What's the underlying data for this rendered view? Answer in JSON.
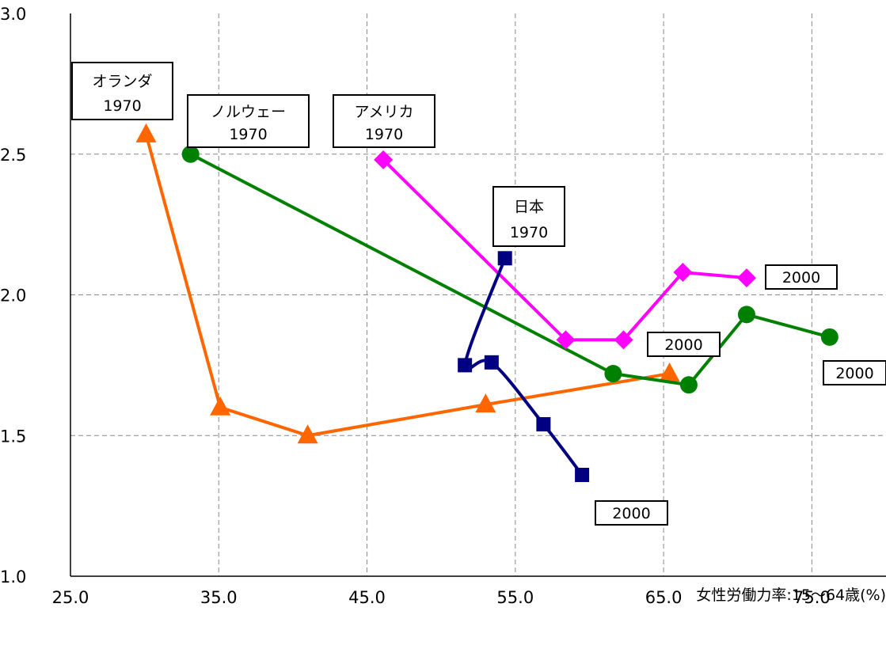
{
  "chart_data": {
    "type": "line",
    "xlabel": "女性労働力率:15〜64歳(%)",
    "ylabel": "",
    "xlim": [
      25,
      80
    ],
    "ylim": [
      1.0,
      3.0
    ],
    "x_ticks": [
      "25.0",
      "35.0",
      "45.0",
      "55.0",
      "65.0",
      "75.0"
    ],
    "y_ticks": [
      "1.0",
      "1.5",
      "2.0",
      "2.5",
      "3.0"
    ],
    "grid": true,
    "series": [
      {
        "id": "netherlands",
        "marker": "triangle",
        "color": "#FF6600",
        "points": [
          [
            30.1,
            2.57
          ],
          [
            35.1,
            1.6
          ],
          [
            41.0,
            1.5
          ],
          [
            53.0,
            1.61
          ],
          [
            65.4,
            1.72
          ]
        ]
      },
      {
        "id": "norway",
        "marker": "circle",
        "color": "#008000",
        "points": [
          [
            33.1,
            2.5
          ],
          [
            61.6,
            1.72
          ],
          [
            66.7,
            1.68
          ],
          [
            70.6,
            1.93
          ],
          [
            76.2,
            1.85
          ]
        ]
      },
      {
        "id": "usa",
        "marker": "diamond",
        "color": "#FF00FF",
        "points": [
          [
            46.1,
            2.48
          ],
          [
            58.4,
            1.84
          ],
          [
            62.3,
            1.84
          ],
          [
            66.3,
            2.08
          ],
          [
            70.6,
            2.06
          ]
        ]
      },
      {
        "id": "japan",
        "marker": "square",
        "color": "#000080",
        "points": [
          [
            54.3,
            2.13
          ],
          [
            51.6,
            1.75
          ],
          [
            53.4,
            1.76
          ],
          [
            56.9,
            1.54
          ],
          [
            59.5,
            1.36
          ]
        ]
      }
    ],
    "annotations": [
      {
        "id": "netherlands-1970",
        "lines": [
          "オランダ",
          "1970"
        ]
      },
      {
        "id": "norway-1970",
        "lines": [
          "ノルウェー",
          "1970"
        ]
      },
      {
        "id": "usa-1970",
        "lines": [
          "アメリカ",
          "1970"
        ]
      },
      {
        "id": "japan-1970",
        "lines": [
          "日本",
          "1970"
        ]
      },
      {
        "id": "usa-2000",
        "lines": [
          "2000"
        ]
      },
      {
        "id": "netherlands-2000",
        "lines": [
          "2000"
        ]
      },
      {
        "id": "norway-2000",
        "lines": [
          "2000"
        ]
      },
      {
        "id": "japan-2000",
        "lines": [
          "2000"
        ]
      }
    ]
  }
}
